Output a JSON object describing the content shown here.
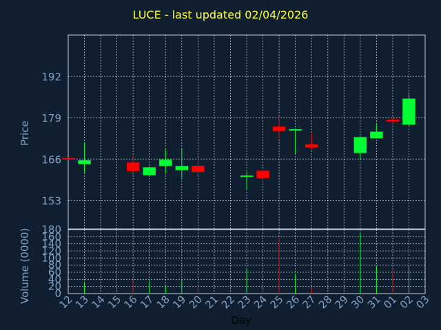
{
  "chart_data": {
    "title": "LUCE - last updated 02/04/2026",
    "xlabel": "Day",
    "x_ticks": [
      "12",
      "13",
      "14",
      "15",
      "16",
      "17",
      "18",
      "19",
      "20",
      "21",
      "22",
      "23",
      "24",
      "25",
      "26",
      "27",
      "28",
      "29",
      "30",
      "31",
      "01",
      "02",
      "03"
    ],
    "price_panel": {
      "type": "candlestick",
      "ylabel": "Price",
      "yticks": [
        153,
        166,
        179,
        192
      ],
      "ylim": [
        144,
        205
      ],
      "candles": [
        {
          "day": "12",
          "open": 166.3,
          "close": 166.0,
          "high": 166.4,
          "low": 165.9
        },
        {
          "day": "13",
          "open": 164.4,
          "close": 165.6,
          "high": 171.0,
          "low": 161.5
        },
        {
          "day": "16",
          "open": 164.9,
          "close": 162.2,
          "high": 167.0,
          "low": 161.8
        },
        {
          "day": "17",
          "open": 160.9,
          "close": 163.4,
          "high": 163.6,
          "low": 160.7
        },
        {
          "day": "18",
          "open": 163.8,
          "close": 165.8,
          "high": 169.0,
          "low": 161.7
        },
        {
          "day": "19",
          "open": 162.5,
          "close": 163.8,
          "high": 169.5,
          "low": 160.0
        },
        {
          "day": "20",
          "open": 163.9,
          "close": 161.9,
          "high": 166.5,
          "low": 161.0
        },
        {
          "day": "23",
          "open": 160.4,
          "close": 160.8,
          "high": 162.0,
          "low": 156.5
        },
        {
          "day": "24",
          "open": 162.3,
          "close": 160.0,
          "high": 162.6,
          "low": 158.0
        },
        {
          "day": "25",
          "open": 176.2,
          "close": 174.8,
          "high": 179.5,
          "low": 172.5
        },
        {
          "day": "26",
          "open": 175.3,
          "close": 175.4,
          "high": 175.6,
          "low": 167.5
        },
        {
          "day": "27",
          "open": 170.6,
          "close": 169.6,
          "high": 174.2,
          "low": 168.9
        },
        {
          "day": "30",
          "open": 167.9,
          "close": 172.9,
          "high": 173.2,
          "low": 166.0
        },
        {
          "day": "31",
          "open": 172.5,
          "close": 174.6,
          "high": 177.0,
          "low": 172.4
        },
        {
          "day": "01",
          "open": 178.4,
          "close": 177.8,
          "high": 179.5,
          "low": 177.0
        },
        {
          "day": "02",
          "open": 176.8,
          "close": 185.0,
          "high": 187.0,
          "low": 176.0
        }
      ]
    },
    "volume_panel": {
      "type": "bar",
      "ylabel": "Volume (0000)",
      "yticks": [
        0,
        20,
        40,
        60,
        80,
        100,
        120,
        140,
        160,
        180
      ],
      "ylim": [
        0,
        180
      ],
      "bars": [
        {
          "day": "13",
          "value": 32,
          "direction": "up"
        },
        {
          "day": "16",
          "value": 38,
          "direction": "down"
        },
        {
          "day": "17",
          "value": 36,
          "direction": "up"
        },
        {
          "day": "18",
          "value": 22,
          "direction": "up"
        },
        {
          "day": "19",
          "value": 40,
          "direction": "up"
        },
        {
          "day": "20",
          "value": 21,
          "direction": "down"
        },
        {
          "day": "23",
          "value": 70,
          "direction": "up"
        },
        {
          "day": "24",
          "value": 14,
          "direction": "down"
        },
        {
          "day": "25",
          "value": 158,
          "direction": "down"
        },
        {
          "day": "26",
          "value": 56,
          "direction": "up"
        },
        {
          "day": "27",
          "value": 16,
          "direction": "down"
        },
        {
          "day": "30",
          "value": 170,
          "direction": "up"
        },
        {
          "day": "31",
          "value": 78,
          "direction": "up"
        },
        {
          "day": "01",
          "value": 65,
          "direction": "down"
        },
        {
          "day": "02",
          "value": 80,
          "direction": "up"
        }
      ]
    },
    "colors": {
      "background": "#0f1f30",
      "up": "#00ff33",
      "down": "#ff0000",
      "axis_text": "#7fa2c6",
      "title": "#ffff33",
      "grid": "#b7c4cf",
      "frame": "#c8d2da",
      "xlabel": "#000000"
    },
    "grid": true
  }
}
